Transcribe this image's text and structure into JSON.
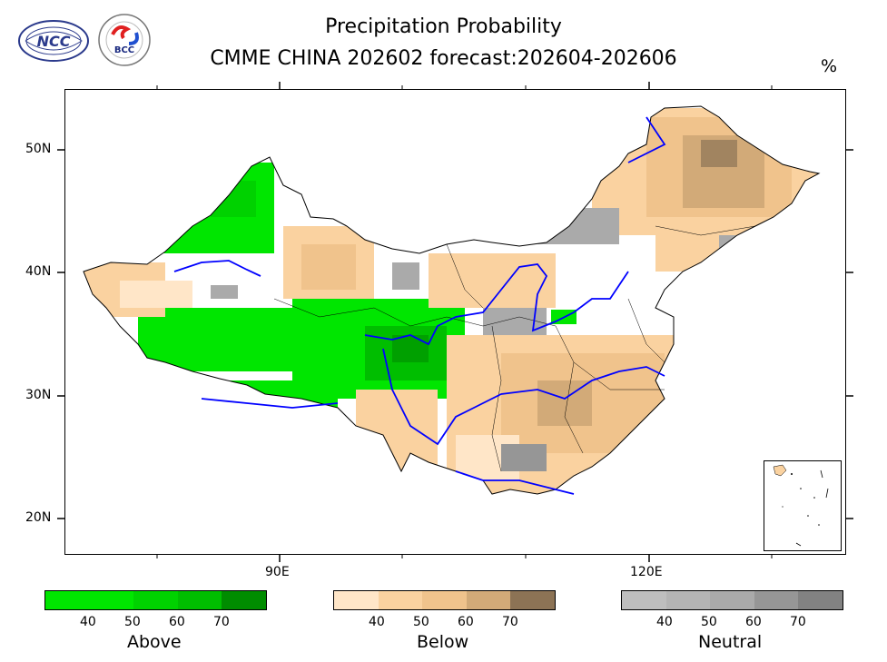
{
  "title": "Precipitation Probability",
  "subtitle": "CMME CHINA 202602 forecast:202604-202606",
  "unit": "%",
  "logos": [
    {
      "name": "ncc-logo",
      "text": "NCC"
    },
    {
      "name": "bcc-logo",
      "text": "BCC"
    }
  ],
  "map": {
    "lat_labels": [
      "50N",
      "40N",
      "30N",
      "20N"
    ],
    "lon_labels": [
      "90E",
      "120E"
    ]
  },
  "colors": {
    "above": [
      "#00e600",
      "#00d200",
      "#00be00",
      "#008c00"
    ],
    "below": [
      "#ffe6c8",
      "#fad2a0",
      "#f0c38c",
      "#d2aa78",
      "#8c7355"
    ],
    "neutral": [
      "#bebebe",
      "#b4b4b4",
      "#aaaaaa",
      "#969696",
      "#828282"
    ],
    "river": "#0000ff"
  },
  "legends": [
    {
      "name": "Above",
      "ticks": [
        "40",
        "50",
        "60",
        "70"
      ]
    },
    {
      "name": "Below",
      "ticks": [
        "40",
        "50",
        "60",
        "70"
      ]
    },
    {
      "name": "Neutral",
      "ticks": [
        "40",
        "50",
        "60",
        "70"
      ]
    }
  ]
}
